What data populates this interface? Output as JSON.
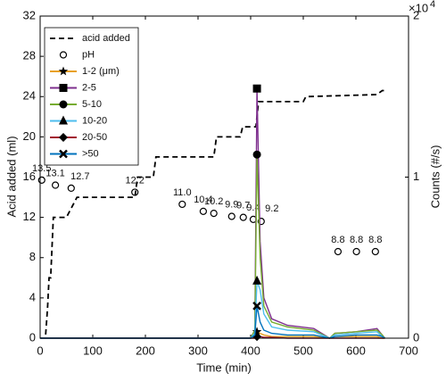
{
  "chart_data": {
    "type": "line",
    "xlabel": "Time (min)",
    "ylabel": "Acid added (ml)",
    "y2label": "Counts (#/s)",
    "y2_scale": {
      "base": "×10",
      "exponent": "4"
    },
    "xlim": [
      0,
      700
    ],
    "xticks": [
      0,
      100,
      200,
      300,
      400,
      500,
      600,
      700
    ],
    "ylim": [
      0,
      32
    ],
    "yticks": [
      0,
      4,
      8,
      12,
      16,
      20,
      24,
      28,
      32
    ],
    "y2lim": [
      0,
      2
    ],
    "y2ticks": [
      0,
      1,
      2
    ],
    "legend": "upper left",
    "series": [
      {
        "name": "acid added",
        "color": "#000000",
        "style": "dashed",
        "x": [
          0,
          10,
          14,
          17,
          20,
          25,
          30,
          50,
          70,
          180,
          185,
          215,
          220,
          330,
          335,
          380,
          385,
          410,
          415,
          500,
          505,
          640,
          650,
          655
        ],
        "values": [
          0,
          0,
          3,
          6,
          6,
          12,
          12,
          12,
          14,
          14,
          16,
          16,
          18,
          18,
          20,
          20,
          21,
          21,
          23.5,
          23.5,
          24,
          24.2,
          24.6,
          24.6
        ]
      },
      {
        "name": "pH",
        "color": "#000000",
        "style": "none",
        "marker": "open-circle",
        "x": [
          3,
          29,
          59,
          180,
          270,
          310,
          330,
          364,
          386,
          405,
          420,
          566,
          601,
          637
        ],
        "values": [
          15.7,
          15.2,
          14.9,
          14.5,
          13.3,
          12.6,
          12.4,
          12.1,
          12.0,
          11.8,
          11.6,
          8.6,
          8.6,
          8.6
        ],
        "point_labels": [
          "13.5",
          "13.1",
          "12.7",
          "12.2",
          "11.0",
          "10.4",
          "10.2",
          "9.9",
          "9.7",
          "9.4",
          "9.2",
          "8.8",
          "8.8",
          "8.8"
        ]
      },
      {
        "name": "1-2 (μm)",
        "axis": "y2",
        "color": "#e8a020",
        "style": "solid",
        "marker": "star",
        "x": [
          0,
          400,
          408,
          412,
          418,
          425,
          440,
          470,
          520,
          550,
          560,
          600,
          640,
          650,
          655
        ],
        "values": [
          0,
          0,
          0.01,
          0.04,
          0.03,
          0.02,
          0.01,
          0.01,
          0.01,
          0,
          0.01,
          0.01,
          0.01,
          0,
          0
        ]
      },
      {
        "name": "2-5",
        "axis": "y2",
        "color": "#7e2f8e",
        "style": "solid",
        "marker": "square",
        "x": [
          0,
          400,
          408,
          412,
          418,
          425,
          440,
          470,
          520,
          550,
          560,
          600,
          640,
          650,
          655
        ],
        "values": [
          0,
          0,
          0.05,
          1.55,
          0.6,
          0.25,
          0.12,
          0.08,
          0.06,
          0,
          0.03,
          0.04,
          0.06,
          0.02,
          0
        ]
      },
      {
        "name": "5-10",
        "axis": "y2",
        "color": "#77ac30",
        "style": "solid",
        "marker": "circle",
        "x": [
          0,
          400,
          408,
          412,
          418,
          425,
          440,
          470,
          520,
          550,
          560,
          600,
          640,
          650,
          655
        ],
        "values": [
          0,
          0,
          0.05,
          1.14,
          0.5,
          0.2,
          0.1,
          0.07,
          0.05,
          0,
          0.03,
          0.04,
          0.05,
          0.02,
          0
        ]
      },
      {
        "name": "10-20",
        "axis": "y2",
        "color": "#4dbeee",
        "style": "solid",
        "marker": "triangle",
        "x": [
          0,
          400,
          408,
          412,
          418,
          425,
          440,
          470,
          520,
          550,
          560,
          600,
          640,
          650,
          655
        ],
        "values": [
          0,
          0,
          0.03,
          0.355,
          0.3,
          0.15,
          0.07,
          0.05,
          0.04,
          0,
          0.02,
          0.03,
          0.04,
          0.01,
          0
        ]
      },
      {
        "name": "20-50",
        "axis": "y2",
        "color": "#a2142f",
        "style": "solid",
        "marker": "diamond",
        "x": [
          0,
          400,
          408,
          412,
          418,
          425,
          440,
          470,
          520,
          550,
          560,
          600,
          640,
          650,
          655
        ],
        "values": [
          0,
          0,
          0,
          0.01,
          0.01,
          0.005,
          0.005,
          0,
          0,
          0,
          0,
          0,
          0,
          0,
          0
        ]
      },
      {
        "name": ">50",
        "axis": "y2",
        "color": "#0072bd",
        "style": "solid",
        "marker": "x",
        "x": [
          0,
          400,
          408,
          412,
          418,
          425,
          440,
          470,
          520,
          550,
          560,
          600,
          640,
          650,
          655
        ],
        "values": [
          0,
          0,
          0.02,
          0.2,
          0.1,
          0.05,
          0.03,
          0.02,
          0.02,
          0,
          0.01,
          0.02,
          0.02,
          0.01,
          0
        ]
      }
    ]
  }
}
